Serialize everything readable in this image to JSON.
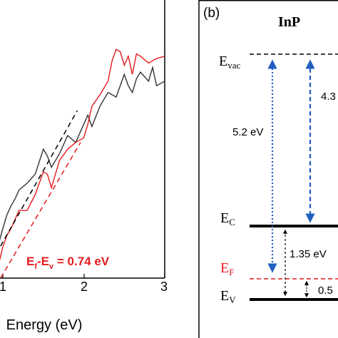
{
  "chart_data": {
    "type": "line",
    "xlabel": "Energy (eV)",
    "xlim": [
      0.92,
      3.0
    ],
    "ylim": [
      0,
      1
    ],
    "x_ticks": [
      "1",
      "2",
      "3"
    ],
    "series": [
      {
        "color": "#333333",
        "style": "solid",
        "x": [
          0.92,
          0.96,
          1.0,
          1.05,
          1.1,
          1.15,
          1.2,
          1.3,
          1.4,
          1.5,
          1.55,
          1.6,
          1.7,
          1.8,
          1.9,
          2.0,
          2.05,
          2.1,
          2.2,
          2.3,
          2.4,
          2.5,
          2.55,
          2.6,
          2.65,
          2.7,
          2.8,
          2.85,
          2.9,
          3.0
        ],
        "y": [
          0.11,
          0.2,
          0.25,
          0.31,
          0.35,
          0.38,
          0.42,
          0.45,
          0.49,
          0.6,
          0.57,
          0.52,
          0.58,
          0.66,
          0.63,
          0.71,
          0.75,
          0.7,
          0.79,
          0.85,
          0.83,
          0.93,
          0.88,
          0.85,
          0.91,
          0.94,
          0.9,
          0.96,
          0.88,
          0.9
        ]
      },
      {
        "color": "#e41a1c",
        "style": "solid",
        "x": [
          0.92,
          0.96,
          1.0,
          1.05,
          1.1,
          1.15,
          1.2,
          1.3,
          1.4,
          1.5,
          1.55,
          1.6,
          1.7,
          1.8,
          1.9,
          2.0,
          2.05,
          2.1,
          2.2,
          2.3,
          2.35,
          2.4,
          2.45,
          2.5,
          2.55,
          2.6,
          2.65,
          2.7,
          2.8,
          2.9,
          3.0
        ],
        "y": [
          0.07,
          0.11,
          0.17,
          0.22,
          0.25,
          0.29,
          0.33,
          0.33,
          0.4,
          0.5,
          0.49,
          0.43,
          0.55,
          0.6,
          0.63,
          0.65,
          0.71,
          0.79,
          0.84,
          0.9,
          0.99,
          1.04,
          1.03,
          0.97,
          1.01,
          0.93,
          1.02,
          1.01,
          0.98,
          1.0,
          1.01
        ]
      },
      {
        "color": "#000000",
        "style": "dashed",
        "x": [
          0.92,
          1.92
        ],
        "y": [
          0.14,
          0.77
        ]
      },
      {
        "color": "#e41a1c",
        "style": "dashed",
        "x": [
          0.92,
          1.96
        ],
        "y": [
          0.0,
          0.63
        ]
      }
    ],
    "annotation": "E$_f$-E$_v$ = 0.74 eV"
  },
  "panel_b": {
    "tag": "(b)",
    "title": "InP",
    "levels": {
      "vac": {
        "main": "E",
        "sub": "vac"
      },
      "c": {
        "main": "E",
        "sub": "C"
      },
      "f": {
        "main": "E",
        "sub": "F"
      },
      "v": {
        "main": "E",
        "sub": "V"
      }
    },
    "values": {
      "e52": "5.2 eV",
      "e43": "4.3",
      "e135": "1.35 eV",
      "e05": "0.5"
    }
  },
  "annotation_a": {
    "main": "E",
    "sub1": "f",
    "mid": "-E",
    "sub2": "v",
    "rest": " = 0.74 eV"
  }
}
